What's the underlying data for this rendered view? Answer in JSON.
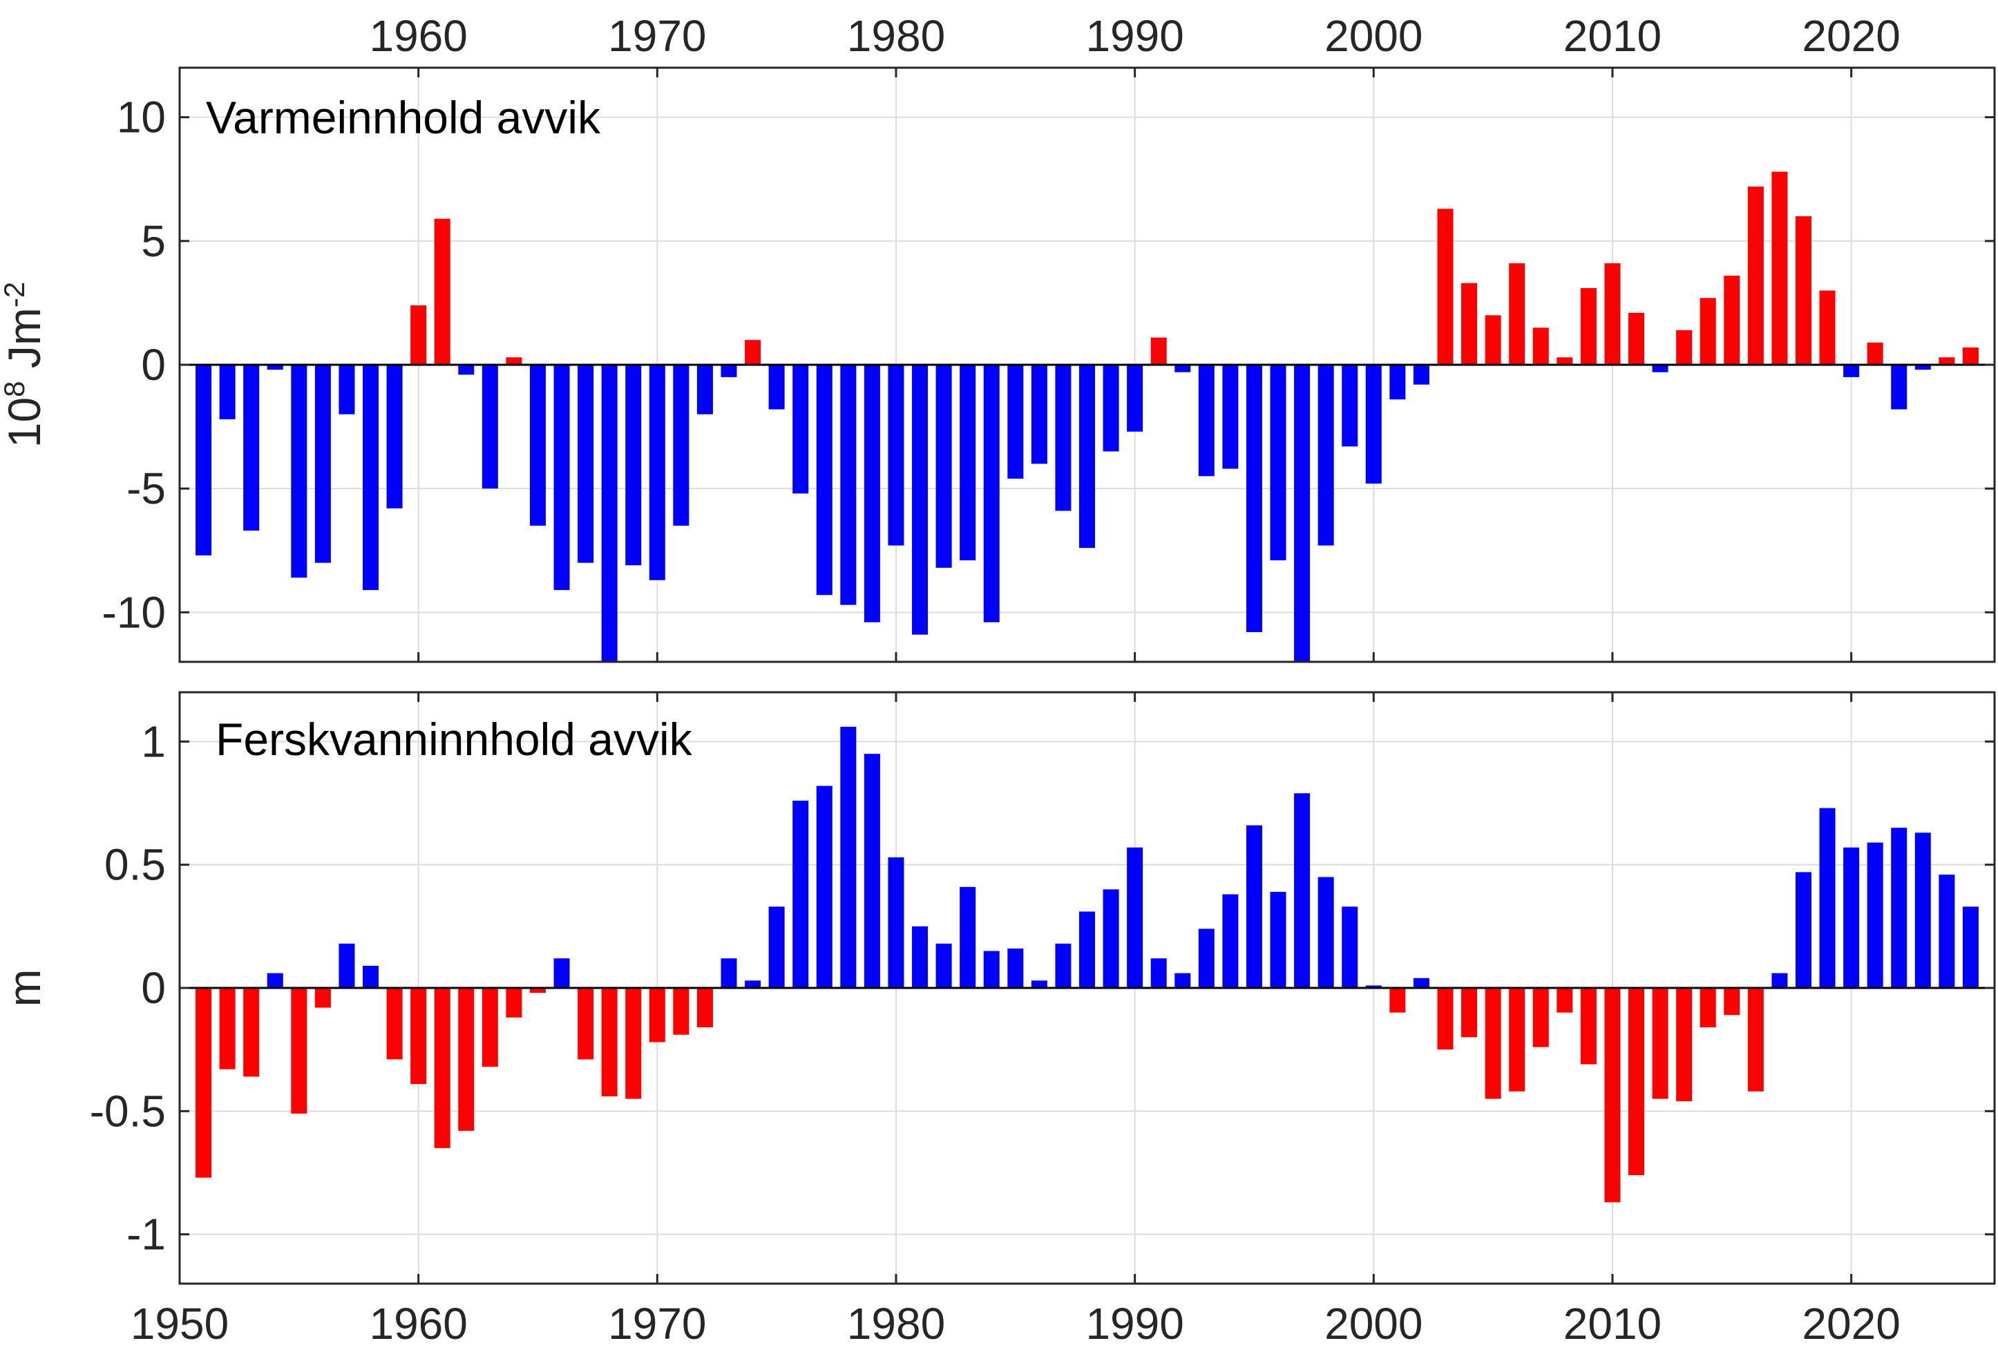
{
  "colors": {
    "positive_heat": "#ff0000",
    "negative_heat": "#0000ff",
    "positive_fresh": "#0000ff",
    "negative_fresh": "#ff0000"
  },
  "chart_data": [
    {
      "type": "bar",
      "title": "Varmeinnhold avvik",
      "ylabel_base": "10",
      "ylabel_exp": "8",
      "ylabel_unit": " Jm",
      "ylabel_unit_exp": "-2",
      "xlim": [
        1950,
        2026
      ],
      "ylim": [
        -12,
        12
      ],
      "yticks": [
        -10,
        -5,
        0,
        5,
        10
      ],
      "ytick_labels": [
        "-10",
        "-5",
        "0",
        "5",
        "10"
      ],
      "xticks": [
        1960,
        1970,
        1980,
        1990,
        2000,
        2010,
        2020
      ],
      "xtick_labels": [
        "1960",
        "1970",
        "1980",
        "1990",
        "2000",
        "2010",
        "2020"
      ],
      "grid": true,
      "color_rule": "positive red, negative blue",
      "x": [
        1951,
        1952,
        1953,
        1954,
        1955,
        1956,
        1957,
        1958,
        1959,
        1960,
        1961,
        1962,
        1963,
        1964,
        1965,
        1966,
        1967,
        1968,
        1969,
        1970,
        1971,
        1972,
        1973,
        1974,
        1975,
        1976,
        1977,
        1978,
        1979,
        1980,
        1981,
        1982,
        1983,
        1984,
        1985,
        1986,
        1987,
        1988,
        1989,
        1990,
        1991,
        1992,
        1993,
        1994,
        1995,
        1996,
        1997,
        1998,
        1999,
        2000,
        2001,
        2002,
        2003,
        2004,
        2005,
        2006,
        2007,
        2008,
        2009,
        2010,
        2011,
        2012,
        2013,
        2014,
        2015,
        2016,
        2017,
        2018,
        2019,
        2020,
        2021,
        2022,
        2023,
        2024,
        2025
      ],
      "values": [
        -7.7,
        -2.2,
        -6.7,
        -0.2,
        -8.6,
        -8.0,
        -2.0,
        -9.1,
        -5.8,
        2.4,
        5.9,
        -0.4,
        -5.0,
        0.3,
        -6.5,
        -9.1,
        -8.0,
        -12.0,
        -8.1,
        -8.7,
        -6.5,
        -2.0,
        -0.5,
        1.0,
        -1.8,
        -5.2,
        -9.3,
        -9.7,
        -10.4,
        -7.3,
        -10.9,
        -8.2,
        -7.9,
        -10.4,
        -4.6,
        -4.0,
        -5.9,
        -7.4,
        -3.5,
        -2.7,
        1.1,
        -0.3,
        -4.5,
        -4.2,
        -10.8,
        -7.9,
        -12.0,
        -7.3,
        -3.3,
        -4.8,
        -1.4,
        -0.8,
        6.3,
        3.3,
        2.0,
        4.1,
        1.5,
        0.3,
        3.1,
        4.1,
        2.1,
        -0.3,
        1.4,
        2.7,
        3.6,
        7.2,
        7.8,
        6.0,
        3.0,
        -0.5,
        0.9,
        -1.8,
        -0.2,
        0.3,
        0.7
      ]
    },
    {
      "type": "bar",
      "title": "Ferskvanninnhold avvik",
      "ylabel": "m",
      "xlim": [
        1950,
        2026
      ],
      "ylim": [
        -1.2,
        1.2
      ],
      "yticks": [
        -1,
        -0.5,
        0,
        0.5,
        1
      ],
      "ytick_labels": [
        "-1",
        "-0.5",
        "0",
        "0.5",
        "1"
      ],
      "xticks": [
        1950,
        1960,
        1970,
        1980,
        1990,
        2000,
        2010,
        2020
      ],
      "xtick_labels": [
        "1950",
        "1960",
        "1970",
        "1980",
        "1990",
        "2000",
        "2010",
        "2020"
      ],
      "grid": true,
      "color_rule": "positive blue, negative red",
      "x": [
        1951,
        1952,
        1953,
        1954,
        1955,
        1956,
        1957,
        1958,
        1959,
        1960,
        1961,
        1962,
        1963,
        1964,
        1965,
        1966,
        1967,
        1968,
        1969,
        1970,
        1971,
        1972,
        1973,
        1974,
        1975,
        1976,
        1977,
        1978,
        1979,
        1980,
        1981,
        1982,
        1983,
        1984,
        1985,
        1986,
        1987,
        1988,
        1989,
        1990,
        1991,
        1992,
        1993,
        1994,
        1995,
        1996,
        1997,
        1998,
        1999,
        2000,
        2001,
        2002,
        2003,
        2004,
        2005,
        2006,
        2007,
        2008,
        2009,
        2010,
        2011,
        2012,
        2013,
        2014,
        2015,
        2016,
        2017,
        2018,
        2019,
        2020,
        2021,
        2022,
        2023,
        2024,
        2025
      ],
      "values": [
        -0.77,
        -0.33,
        -0.36,
        0.06,
        -0.51,
        -0.08,
        0.18,
        0.09,
        -0.29,
        -0.39,
        -0.65,
        -0.58,
        -0.32,
        -0.12,
        -0.02,
        0.12,
        -0.29,
        -0.44,
        -0.45,
        -0.22,
        -0.19,
        -0.16,
        0.12,
        0.03,
        0.33,
        0.76,
        0.82,
        1.06,
        0.95,
        0.53,
        0.25,
        0.18,
        0.41,
        0.15,
        0.16,
        0.03,
        0.18,
        0.31,
        0.4,
        0.57,
        0.12,
        0.06,
        0.24,
        0.38,
        0.66,
        0.39,
        0.79,
        0.45,
        0.33,
        0.01,
        -0.1,
        0.04,
        -0.25,
        -0.2,
        -0.45,
        -0.42,
        -0.24,
        -0.1,
        -0.31,
        -0.87,
        -0.76,
        -0.45,
        -0.46,
        -0.16,
        -0.11,
        -0.42,
        0.06,
        0.47,
        0.73,
        0.57,
        0.59,
        0.65,
        0.63,
        0.46,
        0.33
      ]
    }
  ]
}
